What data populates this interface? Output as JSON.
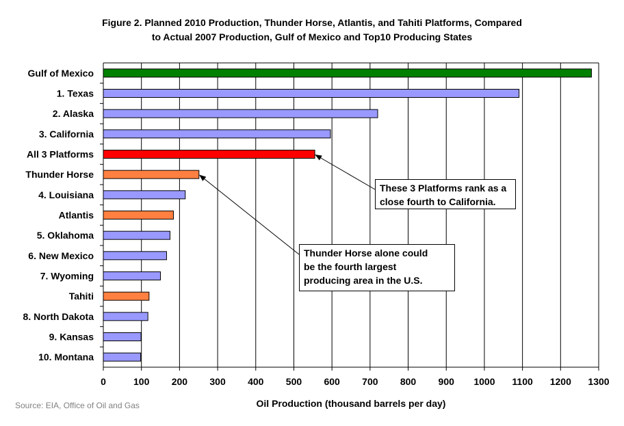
{
  "chart_data": {
    "type": "bar",
    "orientation": "horizontal",
    "title_lines": [
      "Figure 2. Planned 2010 Production, Thunder Horse, Atlantis, and Tahiti Platforms, Compared",
      "to Actual 2007 Production, Gulf of Mexico and Top10 Producing States"
    ],
    "xlabel": "Oil Production (thousand barrels per day)",
    "ylabel": "",
    "xlim": [
      0,
      1300
    ],
    "xticks": [
      0,
      100,
      200,
      300,
      400,
      500,
      600,
      700,
      800,
      900,
      1000,
      1100,
      1200,
      1300
    ],
    "grid": "vertical",
    "categories": [
      "Gulf of Mexico",
      "1. Texas",
      "2. Alaska",
      "3. California",
      "All 3 Platforms",
      "Thunder Horse",
      "4. Louisiana",
      "Atlantis",
      "5. Oklahoma",
      "6. New Mexico",
      "7. Wyoming",
      "Tahiti",
      "8. North Dakota",
      "9. Kansas",
      "10. Montana"
    ],
    "values": [
      1281,
      1091,
      720,
      596,
      555,
      251,
      215,
      184,
      175,
      166,
      150,
      120,
      117,
      99,
      98
    ],
    "colors": [
      "#008000",
      "#9999ff",
      "#9999ff",
      "#9999ff",
      "#ff0000",
      "#ff8040",
      "#9999ff",
      "#ff8040",
      "#9999ff",
      "#9999ff",
      "#9999ff",
      "#ff8040",
      "#9999ff",
      "#9999ff",
      "#9999ff"
    ],
    "annotations": [
      {
        "text_lines": [
          "These 3 Platforms rank as a",
          "close fourth to California."
        ],
        "points_to": "All 3 Platforms"
      },
      {
        "text_lines": [
          "Thunder Horse alone could",
          "be the fourth largest",
          "producing area in the U.S."
        ],
        "points_to": "Thunder Horse"
      }
    ],
    "source": "Source: EIA, Office of Oil and Gas"
  }
}
